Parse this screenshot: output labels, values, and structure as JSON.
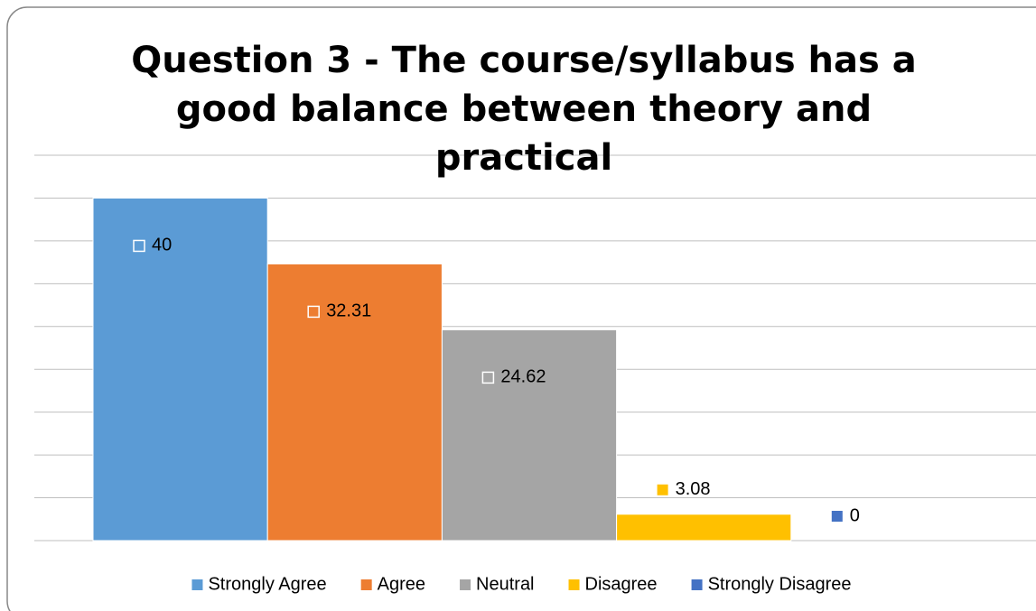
{
  "chart_data": {
    "type": "bar",
    "title": "Question 3 - The course/syllabus has a good balance between theory and practical",
    "series": [
      {
        "name": "Strongly Agree",
        "color": "#5b9bd5",
        "values": [
          40
        ]
      },
      {
        "name": "Agree",
        "color": "#ed7d31",
        "values": [
          32.31
        ]
      },
      {
        "name": "Neutral",
        "color": "#a5a5a5",
        "values": [
          24.62
        ]
      },
      {
        "name": "Disagree",
        "color": "#ffc000",
        "values": [
          3.08
        ]
      },
      {
        "name": "Strongly Disagree",
        "color": "#4472c4",
        "values": [
          0
        ]
      }
    ],
    "ylim": [
      0,
      45
    ],
    "yticks": [
      0,
      5,
      10,
      15,
      20,
      25,
      30,
      35,
      40,
      45
    ],
    "grid": true
  }
}
